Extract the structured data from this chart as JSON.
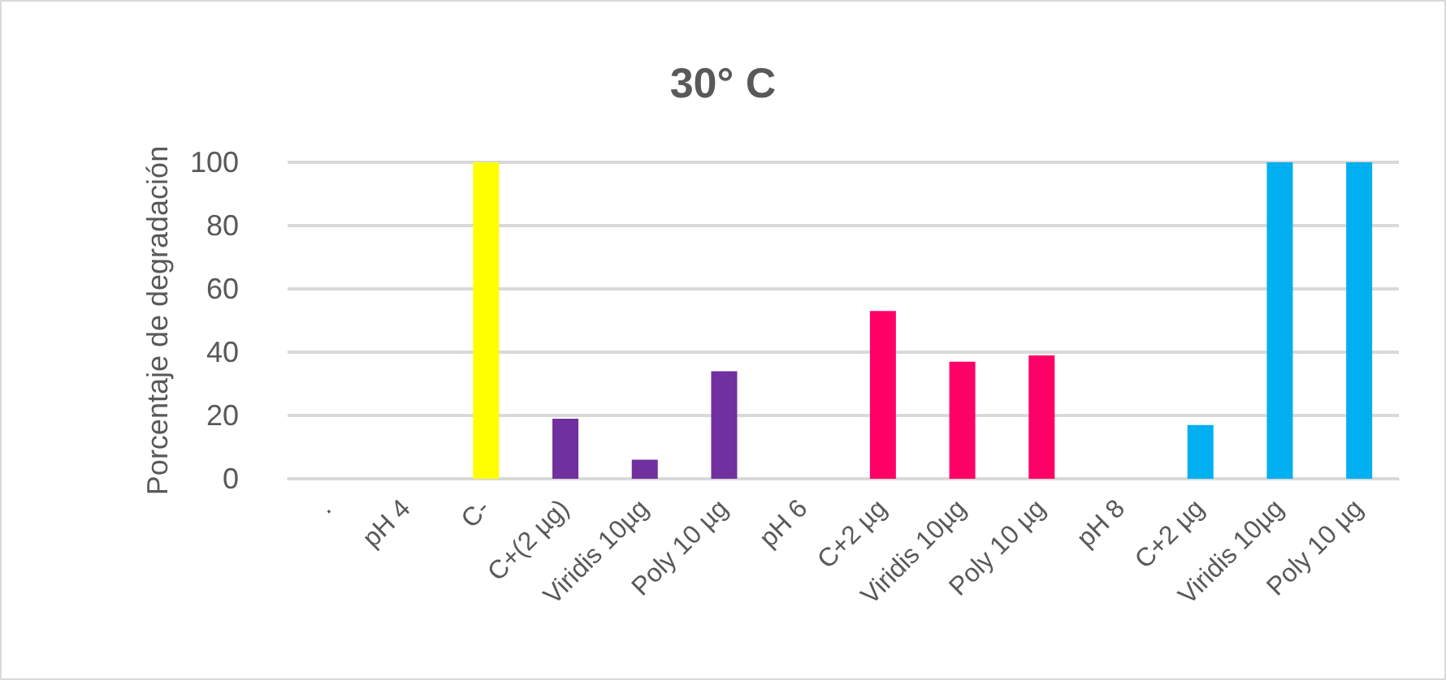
{
  "chart_data": {
    "type": "bar",
    "title": "30° C",
    "ylabel": "Porcentaje de degradación",
    "categories": [
      ".",
      "pH 4",
      "C-",
      "C+(2 µg)",
      "Viridis 10µg",
      "Poly 10 µg",
      "pH 6",
      "C+2 µg",
      "Viridis 10µg",
      "Poly 10 µg",
      "pH 8",
      "C+2 µg",
      "Viridis 10µg",
      "Poly 10 µg"
    ],
    "values": [
      0,
      0,
      100,
      19,
      6,
      34,
      0,
      53,
      37,
      39,
      0,
      17,
      100,
      100
    ],
    "colors": [
      "#7030a0",
      "#7030a0",
      "#ffff00",
      "#7030a0",
      "#7030a0",
      "#7030a0",
      "#ff0066",
      "#ff0066",
      "#ff0066",
      "#ff0066",
      "#00b0f0",
      "#00b0f0",
      "#00b0f0",
      "#00b0f0"
    ],
    "ylim": [
      0,
      100
    ],
    "yticks": [
      0,
      20,
      40,
      60,
      80,
      100
    ],
    "grid": true
  }
}
